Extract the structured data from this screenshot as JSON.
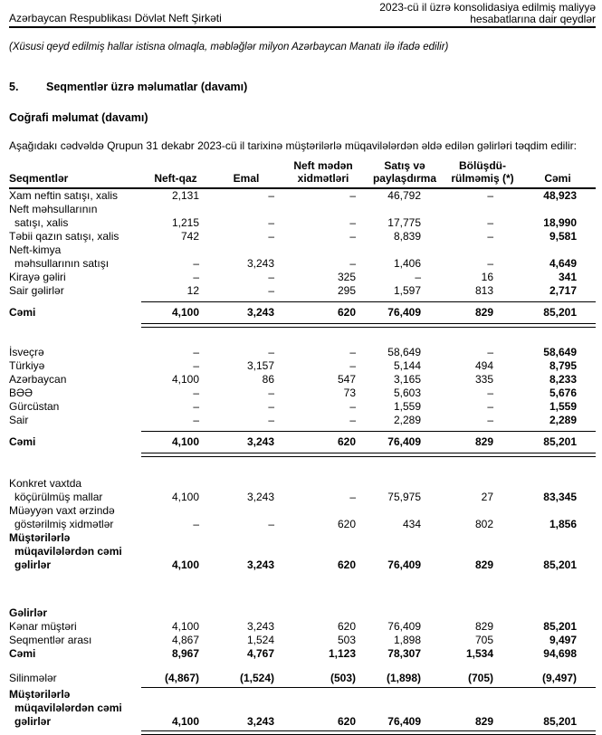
{
  "page_header": {
    "left_title": "Azərbaycan Respublikası Dövlət Neft Şirkəti",
    "right_title_line1": "2023-cü il üzrə konsolidasiya edilmiş maliyyə",
    "right_title_line2": "hesabatlarına dair qeydlər"
  },
  "measurement_note": "(Xüsusi qeyd edilmiş hallar istisna olmaqla, məbləğlər milyon Azərbaycan Manatı ilə ifadə edilir)",
  "section_heading": {
    "number": "5.",
    "title": "Seqmentlər üzrə məlumatlar (davamı)"
  },
  "subsection_heading": "Coğrafi məlumat (davamı)",
  "intro_paragraph": "Aşağıdakı cədvəldə Qrupun 31 dekabr 2023-cü il tarixinə müştərilərlə müqavilələrdən əldə edilən gəlirləri təqdim edilir:",
  "table": {
    "column_headers": [
      [
        "Seqmentlər"
      ],
      [
        "Neft-qaz"
      ],
      [
        "Emal"
      ],
      [
        "Neft mədən",
        "xidmətləri"
      ],
      [
        "Satış və",
        "paylaşdırma"
      ],
      [
        "Bölüşdü-",
        "rülməmiş (*)"
      ],
      [
        "Cəmi"
      ]
    ],
    "sections": [
      {
        "name": "revenue-by-product",
        "rows": [
          {
            "label_lines": [
              "Xam neftin satışı, xalis"
            ],
            "values": [
              "2,131",
              "–",
              "–",
              "46,792",
              "–",
              "48,923"
            ]
          },
          {
            "label_lines": [
              "Neft məhsullarının",
              "satışı, xalis"
            ],
            "values": [
              "1,215",
              "–",
              "–",
              "17,775",
              "–",
              "18,990"
            ]
          },
          {
            "label_lines": [
              "Təbii qazın satışı, xalis"
            ],
            "values": [
              "742",
              "–",
              "–",
              "8,839",
              "–",
              "9,581"
            ]
          },
          {
            "label_lines": [
              "Neft-kimya",
              "məhsullarının satışı"
            ],
            "values": [
              "–",
              "3,243",
              "–",
              "1,406",
              "–",
              "4,649"
            ]
          },
          {
            "label_lines": [
              "Kirayə gəliri"
            ],
            "values": [
              "–",
              "–",
              "325",
              "–",
              "16",
              "341"
            ]
          },
          {
            "label_lines": [
              "Sair gəlirlər"
            ],
            "values": [
              "12",
              "–",
              "295",
              "1,597",
              "813",
              "2,717"
            ]
          },
          {
            "label_lines": [
              "Cəmi"
            ],
            "values": [
              "4,100",
              "3,243",
              "620",
              "76,409",
              "829",
              "85,201"
            ],
            "bold": true,
            "total": true,
            "rule_above": true,
            "rule_below": "double"
          }
        ]
      },
      {
        "name": "revenue-by-country",
        "rows": [
          {
            "label_lines": [
              "İsveçrə"
            ],
            "values": [
              "–",
              "–",
              "–",
              "58,649",
              "–",
              "58,649"
            ]
          },
          {
            "label_lines": [
              "Türkiyə"
            ],
            "values": [
              "–",
              "3,157",
              "–",
              "5,144",
              "494",
              "8,795"
            ]
          },
          {
            "label_lines": [
              "Azərbaycan"
            ],
            "values": [
              "4,100",
              "86",
              "547",
              "3,165",
              "335",
              "8,233"
            ]
          },
          {
            "label_lines": [
              "BƏƏ"
            ],
            "values": [
              "–",
              "–",
              "73",
              "5,603",
              "–",
              "5,676"
            ]
          },
          {
            "label_lines": [
              "Gürcüstan"
            ],
            "values": [
              "–",
              "–",
              "–",
              "1,559",
              "–",
              "1,559"
            ]
          },
          {
            "label_lines": [
              "Sair"
            ],
            "values": [
              "–",
              "–",
              "–",
              "2,289",
              "–",
              "2,289"
            ]
          },
          {
            "label_lines": [
              "Cəmi"
            ],
            "values": [
              "4,100",
              "3,243",
              "620",
              "76,409",
              "829",
              "85,201"
            ],
            "bold": true,
            "total": true,
            "rule_above": true,
            "rule_below": "double"
          }
        ]
      },
      {
        "name": "revenue-by-timing",
        "rows": [
          {
            "label_lines": [
              "Konkret vaxtda",
              "köçürülmüş mallar"
            ],
            "values": [
              "4,100",
              "3,243",
              "–",
              "75,975",
              "27",
              "83,345"
            ]
          },
          {
            "label_lines": [
              "Müəyyən vaxt ərzində",
              "göstərilmiş xidmətlər"
            ],
            "values": [
              "–",
              "–",
              "620",
              "434",
              "802",
              "1,856"
            ]
          },
          {
            "label_lines": [
              "Müştərilərlə",
              "müqavilələrdən cəmi",
              "gəlirlər"
            ],
            "values": [
              "4,100",
              "3,243",
              "620",
              "76,409",
              "829",
              "85,201"
            ],
            "bold": true
          }
        ]
      },
      {
        "name": "revenue-reconciliation",
        "rows": [
          {
            "label_lines": [
              "Gəlirlər"
            ],
            "values": null,
            "bold": true
          },
          {
            "label_lines": [
              "Kənar müştəri"
            ],
            "values": [
              "4,100",
              "3,243",
              "620",
              "76,409",
              "829",
              "85,201"
            ]
          },
          {
            "label_lines": [
              "Seqmentlər arası"
            ],
            "values": [
              "4,867",
              "1,524",
              "503",
              "1,898",
              "705",
              "9,497"
            ]
          },
          {
            "label_lines": [
              "Cəmi"
            ],
            "values": [
              "8,967",
              "4,767",
              "1,123",
              "78,307",
              "1,534",
              "94,698"
            ],
            "bold": true
          }
        ]
      },
      {
        "name": "eliminations",
        "rows": [
          {
            "label_lines": [
              "Silinmələr"
            ],
            "values": [
              "(4,867)",
              "(1,524)",
              "(503)",
              "(1,898)",
              "(705)",
              "(9,497)"
            ],
            "bold_values": true,
            "rule_below": "single"
          },
          {
            "label_lines": [
              "Müştərilərlə",
              "müqavilələrdən cəmi",
              "gəlirlər"
            ],
            "values": [
              "4,100",
              "3,243",
              "620",
              "76,409",
              "829",
              "85,201"
            ],
            "bold": true,
            "rule_below": "double"
          }
        ]
      }
    ]
  }
}
